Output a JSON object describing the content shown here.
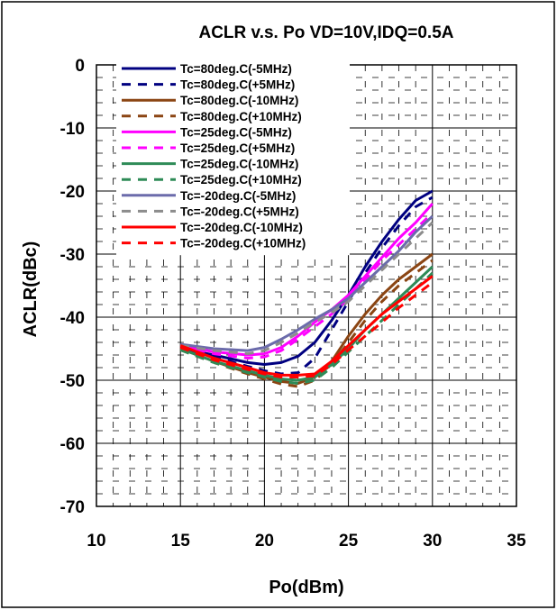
{
  "chart_data": {
    "type": "line",
    "title": "ACLR  v.s.  Po  VD=10V,IDQ=0.5A",
    "xlabel": "Po(dBm)",
    "ylabel": "ACLR(dBc)",
    "xlim": [
      10,
      35
    ],
    "ylim": [
      -70,
      0
    ],
    "xticks": [
      10,
      15,
      20,
      25,
      30,
      35
    ],
    "yticks": [
      0,
      -10,
      -20,
      -30,
      -40,
      -50,
      -60,
      -70
    ],
    "grid": true,
    "legend_position": "top-left",
    "series": [
      {
        "name": "Tc=80deg.C(-5MHz)",
        "color": "#000080",
        "dash": "solid",
        "x": [
          15,
          17,
          19,
          20,
          21,
          22,
          23,
          24,
          25,
          26,
          27,
          28,
          29,
          30
        ],
        "y": [
          -45,
          -46,
          -47.2,
          -47.5,
          -47.2,
          -46.2,
          -44,
          -40.5,
          -36.5,
          -32,
          -28,
          -24.5,
          -21.5,
          -20
        ]
      },
      {
        "name": "Tc=80deg.C(+5MHz)",
        "color": "#000080",
        "dash": "dash",
        "x": [
          15,
          17,
          19,
          20,
          21,
          22,
          23,
          24,
          25,
          26,
          27,
          28,
          29,
          30
        ],
        "y": [
          -45,
          -46.3,
          -47.8,
          -48.5,
          -49,
          -48.8,
          -46.5,
          -42,
          -37.5,
          -33,
          -29,
          -25.5,
          -22.5,
          -21
        ]
      },
      {
        "name": "Tc=80deg.C(-10MHz)",
        "color": "#8B4513",
        "dash": "solid",
        "x": [
          15,
          17,
          19,
          20,
          21,
          22,
          23,
          24,
          25,
          26,
          27,
          28,
          29,
          30
        ],
        "y": [
          -45,
          -47,
          -48.8,
          -49.5,
          -50.2,
          -50.5,
          -49.5,
          -47,
          -43,
          -39.5,
          -36.5,
          -34,
          -32,
          -30
        ]
      },
      {
        "name": "Tc=80deg.C(+10MHz)",
        "color": "#8B4513",
        "dash": "dash",
        "x": [
          15,
          17,
          19,
          20,
          21,
          22,
          23,
          24,
          25,
          26,
          27,
          28,
          29,
          30
        ],
        "y": [
          -45.2,
          -47.2,
          -49,
          -49.8,
          -50.6,
          -51,
          -50,
          -47.5,
          -44,
          -40.5,
          -37.5,
          -35,
          -33,
          -31
        ]
      },
      {
        "name": "Tc=25deg.C(-5MHz)",
        "color": "#FF00FF",
        "dash": "solid",
        "x": [
          15,
          17,
          19,
          20,
          21,
          22,
          23,
          24,
          25,
          26,
          27,
          28,
          29,
          30
        ],
        "y": [
          -44.5,
          -45.5,
          -46,
          -45.8,
          -44.8,
          -43,
          -40.8,
          -38.8,
          -36.5,
          -33.5,
          -30.5,
          -27.5,
          -25,
          -22
        ]
      },
      {
        "name": "Tc=25deg.C(+5MHz)",
        "color": "#FF00FF",
        "dash": "dash",
        "x": [
          15,
          17,
          19,
          20,
          21,
          22,
          23,
          24,
          25,
          26,
          27,
          28,
          29,
          30
        ],
        "y": [
          -44.5,
          -45.8,
          -46.5,
          -46.3,
          -45.3,
          -43.5,
          -41.5,
          -39.5,
          -37,
          -34,
          -31,
          -28.5,
          -26,
          -23.5
        ]
      },
      {
        "name": "Tc=25deg.C(-10MHz)",
        "color": "#2E8B57",
        "dash": "solid",
        "x": [
          15,
          17,
          19,
          20,
          21,
          22,
          23,
          24,
          25,
          26,
          27,
          28,
          29,
          30
        ],
        "y": [
          -45,
          -47,
          -48.5,
          -49.2,
          -49.8,
          -50,
          -49.5,
          -47.5,
          -45,
          -42,
          -39.5,
          -37,
          -34.5,
          -32
        ]
      },
      {
        "name": "Tc=25deg.C(+10MHz)",
        "color": "#2E8B57",
        "dash": "dash",
        "x": [
          15,
          17,
          19,
          20,
          21,
          22,
          23,
          24,
          25,
          26,
          27,
          28,
          29,
          30
        ],
        "y": [
          -45.2,
          -47.2,
          -48.8,
          -49.5,
          -50.2,
          -50.5,
          -50,
          -48,
          -45.5,
          -43,
          -40.5,
          -38,
          -35.5,
          -33
        ]
      },
      {
        "name": "Tc=-20deg.C(-5MHz)",
        "color": "#6B6BAB",
        "dash": "solid",
        "x": [
          15,
          17,
          19,
          20,
          21,
          22,
          23,
          24,
          25,
          26,
          27,
          28,
          29,
          30
        ],
        "y": [
          -44.3,
          -45,
          -45.3,
          -44.8,
          -43.5,
          -42,
          -40.3,
          -38.8,
          -37,
          -34.5,
          -32,
          -29.5,
          -26.5,
          -24
        ]
      },
      {
        "name": "Tc=-20deg.C(+5MHz)",
        "color": "#8C8C8C",
        "dash": "dash",
        "x": [
          15,
          17,
          19,
          20,
          21,
          22,
          23,
          24,
          25,
          26,
          27,
          28,
          29,
          30
        ],
        "y": [
          -44.5,
          -45.3,
          -45.8,
          -45.3,
          -44,
          -42.5,
          -40.8,
          -39.3,
          -37.5,
          -35,
          -32.5,
          -30,
          -27.5,
          -25
        ]
      },
      {
        "name": "Tc=-20deg.C(-10MHz)",
        "color": "#FF0000",
        "dash": "solid",
        "x": [
          15,
          17,
          19,
          20,
          21,
          22,
          23,
          24,
          25,
          26,
          27,
          28,
          29,
          30
        ],
        "y": [
          -44.5,
          -46.5,
          -48,
          -48.8,
          -49.2,
          -49.2,
          -49,
          -47,
          -44.5,
          -42,
          -39.5,
          -37.5,
          -35.5,
          -33.5
        ]
      },
      {
        "name": "Tc=-20deg.C(+10MHz)",
        "color": "#FF0000",
        "dash": "dash",
        "x": [
          15,
          17,
          19,
          20,
          21,
          22,
          23,
          24,
          25,
          26,
          27,
          28,
          29,
          30
        ],
        "y": [
          -44.8,
          -46.8,
          -48.3,
          -49,
          -49.5,
          -49.5,
          -49.3,
          -47.5,
          -45.2,
          -43,
          -40.8,
          -38.5,
          -36.5,
          -34.5
        ]
      }
    ]
  }
}
